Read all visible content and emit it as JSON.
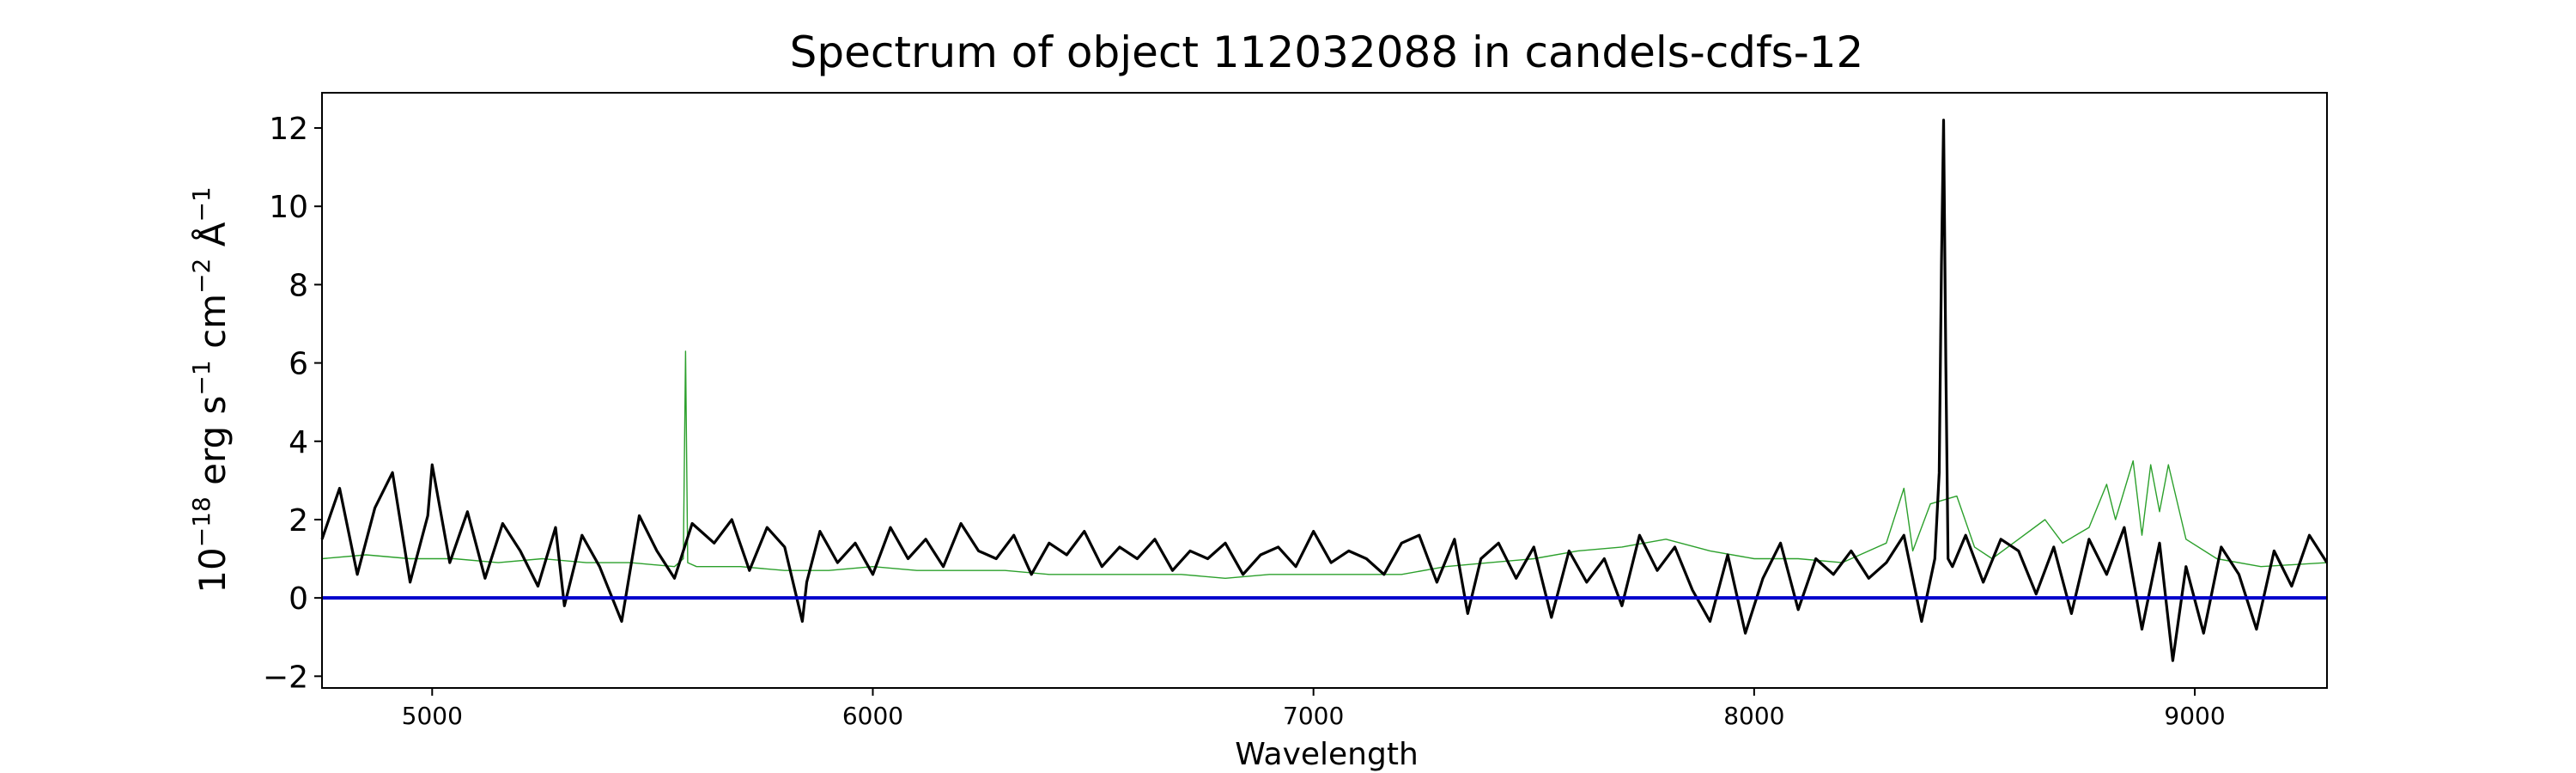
{
  "chart_data": {
    "type": "line",
    "title": "Spectrum of object 112032088 in candels-cdfs-12",
    "xlabel": "Wavelength",
    "ylabel_text": "10",
    "ylabel_exp1": "−18",
    "ylabel_mid1": " erg s",
    "ylabel_exp2": "−1",
    "ylabel_mid2": " cm",
    "ylabel_exp3": "−2",
    "ylabel_mid3": " Å",
    "ylabel_exp4": "−1",
    "xlim": [
      4750,
      9300
    ],
    "ylim": [
      -2.3,
      12.9
    ],
    "xticks": [
      5000,
      6000,
      7000,
      8000,
      9000
    ],
    "xtick_labels": [
      "5000",
      "6000",
      "7000",
      "8000",
      "9000"
    ],
    "yticks": [
      -2,
      0,
      2,
      4,
      6,
      8,
      10,
      12
    ],
    "ytick_labels": [
      "−2",
      "0",
      "2",
      "4",
      "6",
      "8",
      "10",
      "12"
    ],
    "grid": false,
    "colors": {
      "flux": "#000000",
      "noise": "#2ca02c",
      "zero": "#0000cc"
    },
    "series": [
      {
        "role": "flux",
        "x": [
          4750,
          4790,
          4830,
          4870,
          4910,
          4950,
          4990,
          5000,
          5040,
          5080,
          5120,
          5160,
          5200,
          5240,
          5280,
          5300,
          5340,
          5380,
          5430,
          5470,
          5510,
          5550,
          5590,
          5640,
          5680,
          5720,
          5760,
          5800,
          5840,
          5850,
          5880,
          5920,
          5960,
          6000,
          6040,
          6080,
          6120,
          6160,
          6200,
          6240,
          6280,
          6320,
          6360,
          6400,
          6440,
          6480,
          6520,
          6560,
          6600,
          6640,
          6680,
          6720,
          6760,
          6800,
          6840,
          6880,
          6920,
          6960,
          7000,
          7040,
          7080,
          7120,
          7160,
          7200,
          7240,
          7280,
          7320,
          7350,
          7380,
          7420,
          7460,
          7500,
          7540,
          7580,
          7620,
          7660,
          7700,
          7740,
          7780,
          7820,
          7860,
          7900,
          7940,
          7980,
          8020,
          8060,
          8100,
          8140,
          8180,
          8220,
          8260,
          8300,
          8340,
          8380,
          8410,
          8420,
          8425,
          8430,
          8435,
          8440,
          8450,
          8480,
          8520,
          8560,
          8600,
          8640,
          8680,
          8720,
          8760,
          8800,
          8840,
          8880,
          8920,
          8950,
          8980,
          9020,
          9060,
          9100,
          9140,
          9180,
          9220,
          9260,
          9300
        ],
        "y": [
          1.5,
          2.8,
          0.6,
          2.3,
          3.2,
          0.4,
          2.1,
          3.4,
          0.9,
          2.2,
          0.5,
          1.9,
          1.2,
          0.3,
          1.8,
          -0.2,
          1.6,
          0.8,
          -0.6,
          2.1,
          1.2,
          0.5,
          1.9,
          1.4,
          2.0,
          0.7,
          1.8,
          1.3,
          -0.6,
          0.4,
          1.7,
          0.9,
          1.4,
          0.6,
          1.8,
          1.0,
          1.5,
          0.8,
          1.9,
          1.2,
          1.0,
          1.6,
          0.6,
          1.4,
          1.1,
          1.7,
          0.8,
          1.3,
          1.0,
          1.5,
          0.7,
          1.2,
          1.0,
          1.4,
          0.6,
          1.1,
          1.3,
          0.8,
          1.7,
          0.9,
          1.2,
          1.0,
          0.6,
          1.4,
          1.6,
          0.4,
          1.5,
          -0.4,
          1.0,
          1.4,
          0.5,
          1.3,
          -0.5,
          1.2,
          0.4,
          1.0,
          -0.2,
          1.6,
          0.7,
          1.3,
          0.2,
          -0.6,
          1.1,
          -0.9,
          0.5,
          1.4,
          -0.3,
          1.0,
          0.6,
          1.2,
          0.5,
          0.9,
          1.6,
          -0.6,
          1.0,
          3.2,
          8.5,
          12.2,
          6.0,
          1.0,
          0.8,
          1.6,
          0.4,
          1.5,
          1.2,
          0.1,
          1.3,
          -0.4,
          1.5,
          0.6,
          1.8,
          -0.8,
          1.4,
          -1.6,
          0.8,
          -0.9,
          1.3,
          0.6,
          -0.8,
          1.2,
          0.3,
          1.6,
          0.9
        ]
      },
      {
        "role": "noise",
        "x": [
          4750,
          4850,
          4950,
          5050,
          5150,
          5250,
          5350,
          5450,
          5550,
          5570,
          5575,
          5580,
          5600,
          5700,
          5800,
          5900,
          6000,
          6100,
          6200,
          6300,
          6400,
          6500,
          6600,
          6700,
          6800,
          6900,
          7000,
          7100,
          7200,
          7300,
          7400,
          7500,
          7600,
          7700,
          7800,
          7900,
          8000,
          8100,
          8200,
          8300,
          8340,
          8360,
          8400,
          8460,
          8500,
          8540,
          8600,
          8660,
          8700,
          8760,
          8800,
          8820,
          8860,
          8880,
          8900,
          8920,
          8940,
          8980,
          9050,
          9150,
          9300
        ],
        "y": [
          1.0,
          1.1,
          1.0,
          1.0,
          0.9,
          1.0,
          0.9,
          0.9,
          0.8,
          1.0,
          6.3,
          0.9,
          0.8,
          0.8,
          0.7,
          0.7,
          0.8,
          0.7,
          0.7,
          0.7,
          0.6,
          0.6,
          0.6,
          0.6,
          0.5,
          0.6,
          0.6,
          0.6,
          0.6,
          0.8,
          0.9,
          1.0,
          1.2,
          1.3,
          1.5,
          1.2,
          1.0,
          1.0,
          0.9,
          1.4,
          2.8,
          1.2,
          2.4,
          2.6,
          1.3,
          1.0,
          1.5,
          2.0,
          1.4,
          1.8,
          2.9,
          2.0,
          3.5,
          1.6,
          3.4,
          2.2,
          3.4,
          1.5,
          1.0,
          0.8,
          0.9
        ]
      },
      {
        "role": "zero",
        "x": [
          4750,
          9300
        ],
        "y": [
          0,
          0
        ]
      }
    ]
  }
}
